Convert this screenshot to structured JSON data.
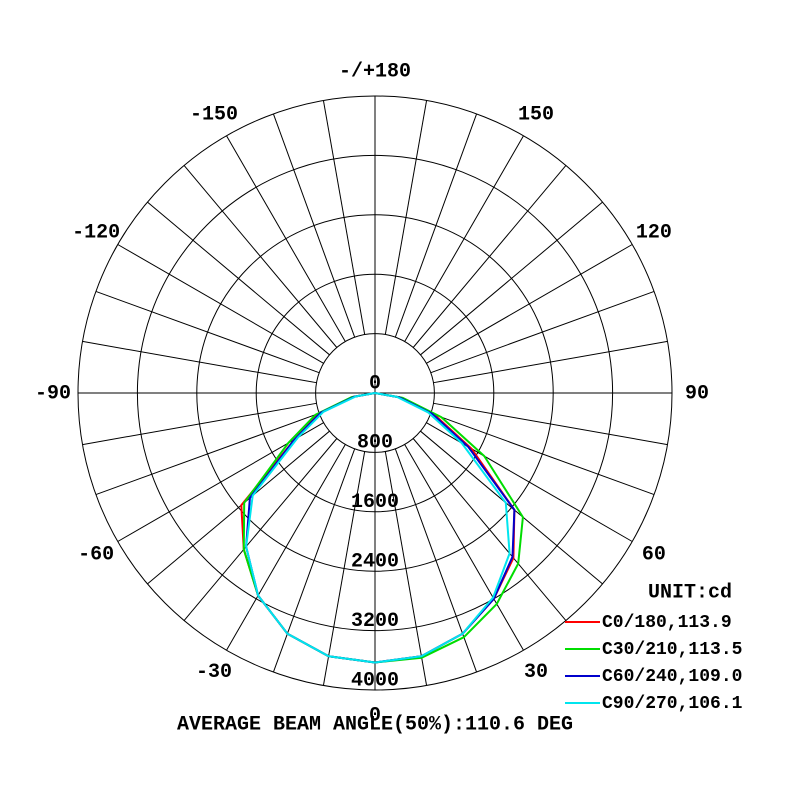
{
  "chart_data": {
    "type": "polar",
    "title": "AVERAGE BEAM ANGLE(50%):110.6 DEG",
    "unit_label": "UNIT:cd",
    "rlim": [
      0,
      4000
    ],
    "rticks": [
      0,
      800,
      1600,
      2400,
      3200,
      4000
    ],
    "thetaticks": [
      0,
      30,
      60,
      90,
      120,
      150,
      {
        "value": 180,
        "label": "-/+180"
      },
      -150,
      -120,
      -90,
      -60,
      -30
    ],
    "thetagrid": [
      0,
      10,
      20,
      30,
      40,
      50,
      60,
      70,
      80,
      90,
      100,
      110,
      120,
      130,
      140,
      150,
      160,
      170,
      180,
      190,
      200,
      210,
      220,
      230,
      240,
      250,
      260,
      270,
      280,
      290,
      300,
      310,
      320,
      330,
      340,
      350
    ],
    "angles": [
      -90,
      -80,
      -70,
      -60,
      -50,
      -40,
      -30,
      -20,
      -10,
      0,
      10,
      20,
      30,
      40,
      50,
      60,
      70,
      80,
      90
    ],
    "series": [
      {
        "name": "C0/180,113.9",
        "color": "#ff0000",
        "values": [
          0,
          300,
          800,
          1250,
          2350,
          2750,
          3150,
          3450,
          3600,
          3630,
          3600,
          3450,
          3200,
          2900,
          2450,
          1500,
          850,
          350,
          0
        ]
      },
      {
        "name": "C30/210,113.5",
        "color": "#00dd00",
        "values": [
          0,
          320,
          850,
          1350,
          2300,
          2750,
          3150,
          3450,
          3600,
          3630,
          3620,
          3500,
          3280,
          3000,
          2600,
          1700,
          950,
          380,
          0
        ]
      },
      {
        "name": "C60/240,109.0",
        "color": "#0000cc",
        "values": [
          0,
          280,
          780,
          1250,
          2200,
          2700,
          3150,
          3450,
          3600,
          3630,
          3600,
          3450,
          3200,
          2880,
          2450,
          1450,
          820,
          330,
          0
        ]
      },
      {
        "name": "C90/270,106.1",
        "color": "#00e5ee",
        "values": [
          0,
          260,
          740,
          1200,
          2150,
          2700,
          3150,
          3450,
          3600,
          3630,
          3600,
          3450,
          3180,
          2820,
          2300,
          1350,
          760,
          300,
          0
        ]
      }
    ]
  }
}
